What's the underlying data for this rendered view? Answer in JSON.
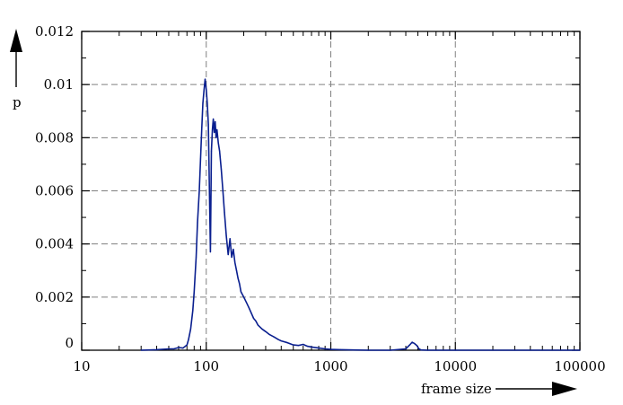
{
  "chart_data": {
    "type": "line",
    "title": "",
    "xlabel": "frame size",
    "ylabel": "p",
    "xscale": "log",
    "xlim": [
      10,
      100000
    ],
    "ylim": [
      0,
      0.012
    ],
    "grid": true,
    "x_tick_labels": [
      "10",
      "100",
      "1000",
      "10000",
      "100000"
    ],
    "y_tick_labels": [
      "0",
      "0.002",
      "0.004",
      "0.006",
      "0.008",
      "0.01",
      "0.012"
    ],
    "colors": {
      "series": "#0a1f8f",
      "grid": "#808080",
      "axes": "#000000"
    },
    "series": [
      {
        "x": [
          30,
          40,
          50,
          55,
          60,
          65,
          70,
          72,
          75,
          78,
          80,
          83,
          85,
          88,
          90,
          92,
          94,
          96,
          98,
          100,
          102,
          104,
          106,
          108,
          110,
          112,
          114,
          116,
          118,
          120,
          122,
          125,
          128,
          132,
          136,
          140,
          145,
          150,
          155,
          160,
          165,
          170,
          175,
          180,
          185,
          190,
          200,
          210,
          220,
          230,
          240,
          250,
          260,
          280,
          300,
          320,
          350,
          380,
          400,
          450,
          500,
          550,
          600,
          650,
          700,
          800,
          900,
          1000,
          1200,
          1500,
          2000,
          3000,
          4000,
          4300,
          4500,
          4700,
          4900,
          5100,
          5300,
          6000,
          10000,
          100000
        ],
        "y": [
          0,
          2e-05,
          5e-05,
          5e-05,
          0.0001,
          8e-05,
          0.0002,
          0.0004,
          0.0008,
          0.0015,
          0.0022,
          0.0035,
          0.0048,
          0.006,
          0.0072,
          0.0083,
          0.0093,
          0.0098,
          0.0102,
          0.0098,
          0.0093,
          0.0085,
          0.006,
          0.0037,
          0.0075,
          0.0083,
          0.0087,
          0.0082,
          0.0086,
          0.008,
          0.0083,
          0.0078,
          0.0075,
          0.0068,
          0.006,
          0.0052,
          0.0043,
          0.0036,
          0.0042,
          0.0035,
          0.0038,
          0.0033,
          0.003,
          0.0027,
          0.0025,
          0.0022,
          0.002,
          0.0018,
          0.0016,
          0.0014,
          0.0012,
          0.0011,
          0.00095,
          0.0008,
          0.0007,
          0.0006,
          0.0005,
          0.0004,
          0.00035,
          0.00028,
          0.0002,
          0.00018,
          0.00022,
          0.00015,
          0.00012,
          8e-05,
          5e-05,
          3e-05,
          2e-05,
          1e-05,
          0,
          0,
          5e-05,
          0.0002,
          0.0003,
          0.00025,
          0.00018,
          5e-05,
          1e-05,
          0,
          0,
          0
        ]
      }
    ]
  }
}
